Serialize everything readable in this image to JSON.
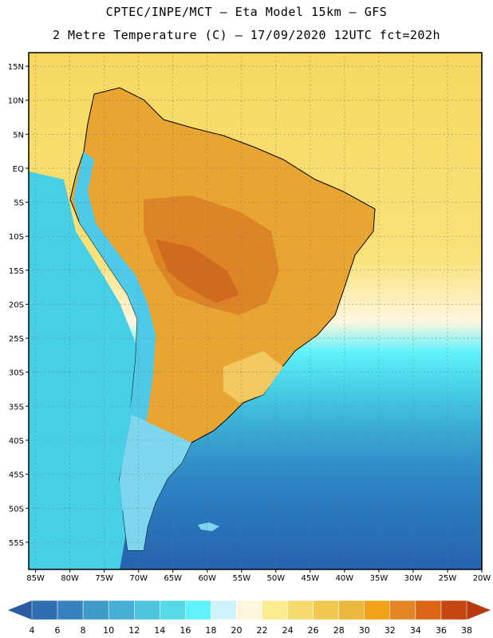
{
  "header": {
    "line1": "CPTEC/INPE/MCT –  Eta Model 15km – GFS",
    "line2": "2 Metre Temperature (C) – 17/09/2020 12UTC fct=202h"
  },
  "map": {
    "lon_range": [
      -86,
      -20
    ],
    "lat_range": [
      -59,
      17
    ],
    "lat_labels": [
      {
        "value": 15,
        "text": "15N"
      },
      {
        "value": 10,
        "text": "10N"
      },
      {
        "value": 5,
        "text": "5N"
      },
      {
        "value": 0,
        "text": "EQ"
      },
      {
        "value": -5,
        "text": "5S"
      },
      {
        "value": -10,
        "text": "10S"
      },
      {
        "value": -15,
        "text": "15S"
      },
      {
        "value": -20,
        "text": "20S"
      },
      {
        "value": -25,
        "text": "25S"
      },
      {
        "value": -30,
        "text": "30S"
      },
      {
        "value": -35,
        "text": "35S"
      },
      {
        "value": -40,
        "text": "40S"
      },
      {
        "value": -45,
        "text": "45S"
      },
      {
        "value": -50,
        "text": "50S"
      },
      {
        "value": -55,
        "text": "55S"
      }
    ],
    "lon_labels": [
      {
        "value": -85,
        "text": "85W"
      },
      {
        "value": -80,
        "text": "80W"
      },
      {
        "value": -75,
        "text": "75W"
      },
      {
        "value": -70,
        "text": "70W"
      },
      {
        "value": -65,
        "text": "65W"
      },
      {
        "value": -60,
        "text": "60W"
      },
      {
        "value": -55,
        "text": "55W"
      },
      {
        "value": -50,
        "text": "50W"
      },
      {
        "value": -45,
        "text": "45W"
      },
      {
        "value": -40,
        "text": "40W"
      },
      {
        "value": -35,
        "text": "35W"
      },
      {
        "value": -30,
        "text": "30W"
      },
      {
        "value": -25,
        "text": "25W"
      },
      {
        "value": -20,
        "text": "20W"
      }
    ],
    "colors": {
      "ocean_north": "#f6d860",
      "ocean_tropical": "#f9e27a",
      "ocean_cream": "#fff6df",
      "ocean_cold1": "#5ff2fa",
      "ocean_cold2": "#47cfe6",
      "ocean_cold3": "#3aaad4",
      "ocean_cold4": "#2e86c5",
      "ocean_cold5": "#2563ae",
      "land_warm": "#e9a531",
      "land_hot": "#dd8526",
      "land_hotter": "#cf6a1e",
      "land_mild": "#f2c860",
      "andes": "#4fc9e8",
      "patagonia": "#7ed6ee",
      "land_south": "#b8e8f4"
    }
  },
  "legend": {
    "labels": [
      "4",
      "6",
      "8",
      "10",
      "12",
      "14",
      "16",
      "18",
      "20",
      "22",
      "24",
      "26",
      "28",
      "30",
      "32",
      "34",
      "36",
      "38"
    ],
    "colors": [
      "#2f6eb0",
      "#3783c0",
      "#3f9ac8",
      "#46aed4",
      "#4ec4de",
      "#56d8e8",
      "#5ef2fa",
      "#cff3fb",
      "#fff6df",
      "#fcec90",
      "#f6da6e",
      "#efc850",
      "#ebb73c",
      "#f0a318",
      "#e38524",
      "#dc6616",
      "#c84614"
    ],
    "left_arrow_color": "#2a5aa0",
    "right_arrow_color": "#b83a10"
  }
}
